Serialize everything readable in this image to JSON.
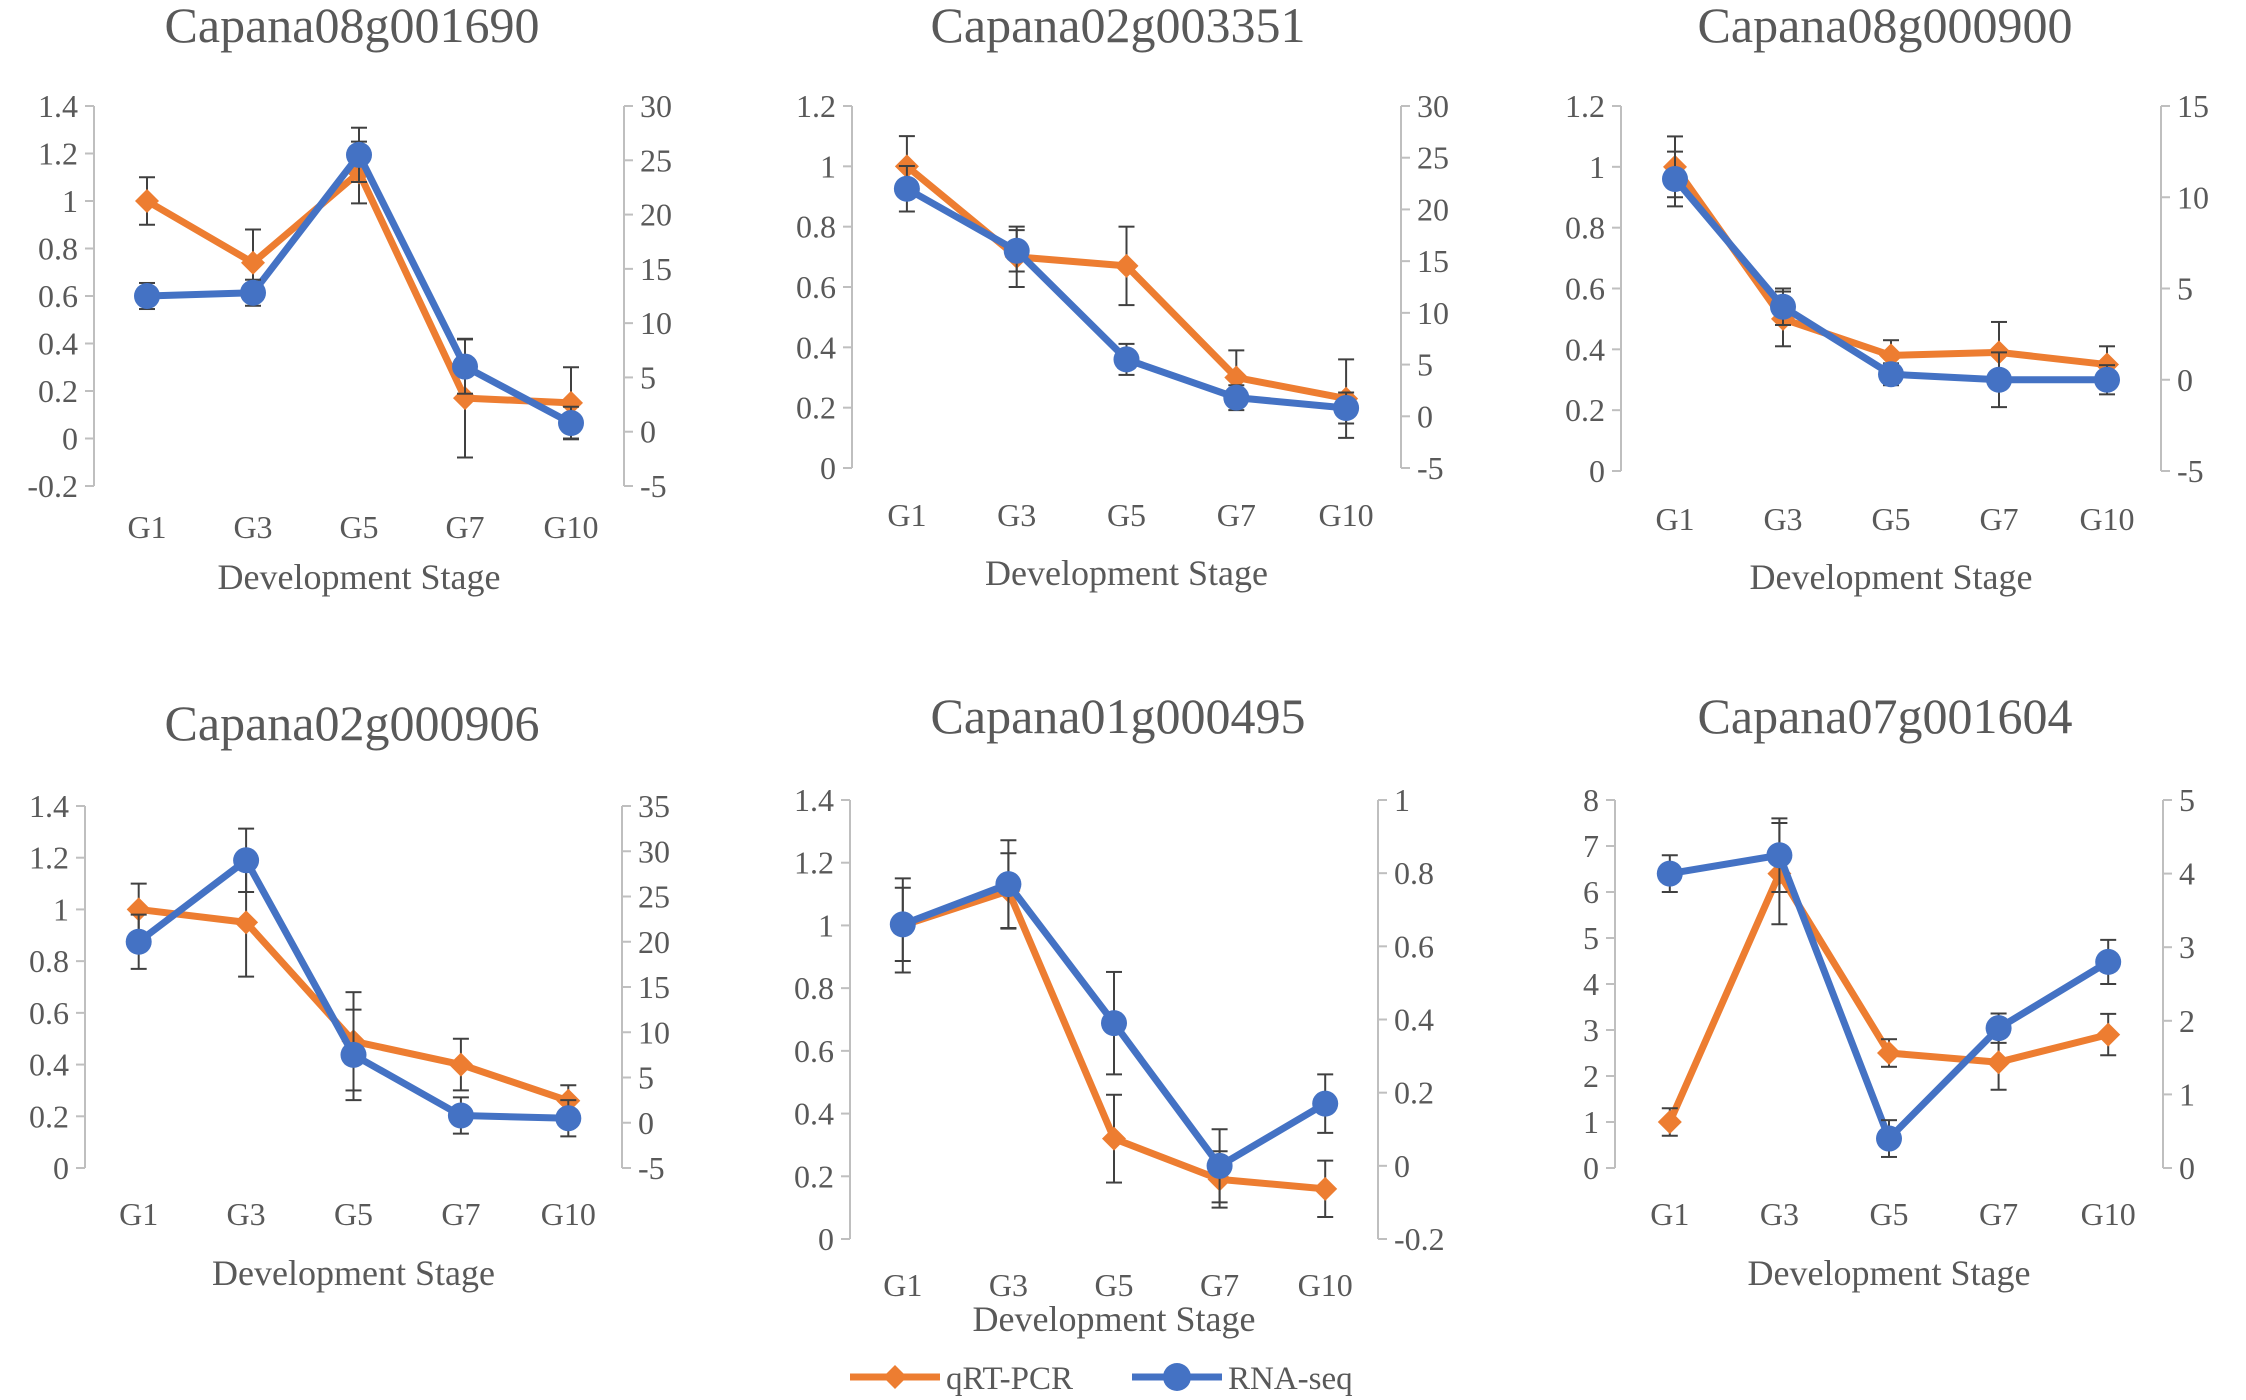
{
  "chart_data": [
    {
      "type": "line",
      "title": "Capana08g001690",
      "xlabel": "Development Stage",
      "categories": [
        "G1",
        "G3",
        "G5",
        "G7",
        "G10"
      ],
      "ylim": [
        -0.2,
        1.4
      ],
      "ystep": 0.2,
      "y2lim": [
        -5,
        30
      ],
      "y2step": 5,
      "series": [
        {
          "name": "qRT-PCR",
          "axis": "left",
          "values": [
            1.0,
            0.74,
            1.12,
            0.17,
            0.15
          ],
          "errors": [
            0.1,
            0.14,
            0.13,
            0.25,
            0.15
          ]
        },
        {
          "name": "RNA-seq",
          "axis": "right",
          "values": [
            12.5,
            12.8,
            25.5,
            6.0,
            0.8
          ],
          "errors": [
            1.2,
            1.2,
            2.5,
            2.5,
            1.5
          ]
        }
      ]
    },
    {
      "type": "line",
      "title": "Capana02g003351",
      "xlabel": "Development Stage",
      "categories": [
        "G1",
        "G3",
        "G5",
        "G7",
        "G10"
      ],
      "ylim": [
        0,
        1.2
      ],
      "ystep": 0.2,
      "y2lim": [
        -5,
        30
      ],
      "y2step": 5,
      "series": [
        {
          "name": "qRT-PCR",
          "axis": "left",
          "values": [
            1.0,
            0.7,
            0.67,
            0.3,
            0.23
          ],
          "errors": [
            0.1,
            0.1,
            0.13,
            0.09,
            0.13
          ]
        },
        {
          "name": "RNA-seq",
          "axis": "right",
          "values": [
            22.0,
            16.0,
            5.5,
            1.8,
            0.8
          ],
          "errors": [
            2.2,
            2.0,
            1.5,
            1.2,
            1.5
          ]
        }
      ]
    },
    {
      "type": "line",
      "title": "Capana08g000900",
      "xlabel": "Development Stage",
      "categories": [
        "G1",
        "G3",
        "G5",
        "G7",
        "G10"
      ],
      "ylim": [
        0,
        1.2
      ],
      "ystep": 0.2,
      "y2lim": [
        -5,
        15
      ],
      "y2step": 5,
      "series": [
        {
          "name": "qRT-PCR",
          "axis": "left",
          "values": [
            1.0,
            0.5,
            0.38,
            0.39,
            0.35
          ],
          "errors": [
            0.1,
            0.09,
            0.05,
            0.1,
            0.06
          ]
        },
        {
          "name": "RNA-seq",
          "axis": "right",
          "values": [
            11.0,
            4.0,
            0.3,
            0.0,
            0.0
          ],
          "errors": [
            1.5,
            1.0,
            0.6,
            1.5,
            0.8
          ]
        }
      ]
    },
    {
      "type": "line",
      "title": "Capana02g000906",
      "xlabel": "Development Stage",
      "categories": [
        "G1",
        "G3",
        "G5",
        "G7",
        "G10"
      ],
      "ylim": [
        0,
        1.4
      ],
      "ystep": 0.2,
      "y2lim": [
        -5,
        35
      ],
      "y2step": 5,
      "series": [
        {
          "name": "qRT-PCR",
          "axis": "left",
          "values": [
            1.0,
            0.95,
            0.49,
            0.4,
            0.26
          ],
          "errors": [
            0.1,
            0.21,
            0.19,
            0.1,
            0.06
          ]
        },
        {
          "name": "RNA-seq",
          "axis": "right",
          "values": [
            20.0,
            29.0,
            7.5,
            0.8,
            0.5
          ],
          "errors": [
            3.0,
            3.5,
            5.0,
            2.0,
            2.0
          ]
        }
      ]
    },
    {
      "type": "line",
      "title": "Capana01g000495",
      "xlabel": "Development Stage",
      "categories": [
        "G1",
        "G3",
        "G5",
        "G7",
        "G10"
      ],
      "ylim": [
        0,
        1.4
      ],
      "ystep": 0.2,
      "y2lim": [
        -0.2,
        1.0
      ],
      "y2step": 0.2,
      "series": [
        {
          "name": "qRT-PCR",
          "axis": "left",
          "values": [
            1.0,
            1.11,
            0.32,
            0.19,
            0.16
          ],
          "errors": [
            0.15,
            0.12,
            0.14,
            0.09,
            0.09
          ]
        },
        {
          "name": "RNA-seq",
          "axis": "right",
          "values": [
            0.66,
            0.77,
            0.39,
            0.0,
            0.17
          ],
          "errors": [
            0.1,
            0.12,
            0.14,
            0.1,
            0.08
          ]
        }
      ]
    },
    {
      "type": "line",
      "title": "Capana07g001604",
      "xlabel": "Development Stage",
      "categories": [
        "G1",
        "G3",
        "G5",
        "G7",
        "G10"
      ],
      "ylim": [
        0,
        8
      ],
      "ystep": 1,
      "y2lim": [
        0,
        5
      ],
      "y2step": 1,
      "series": [
        {
          "name": "qRT-PCR",
          "axis": "left",
          "values": [
            1.0,
            6.4,
            2.5,
            2.3,
            2.9
          ],
          "errors": [
            0.3,
            1.1,
            0.3,
            0.6,
            0.45
          ]
        },
        {
          "name": "RNA-seq",
          "axis": "right",
          "values": [
            4.0,
            4.25,
            0.4,
            1.9,
            2.8
          ],
          "errors": [
            0.25,
            0.5,
            0.25,
            0.2,
            0.3
          ]
        }
      ]
    }
  ],
  "legend": [
    {
      "label": "qRT-PCR",
      "color": "#ED7D31",
      "marker": "diamond"
    },
    {
      "label": "RNA-seq",
      "color": "#4472C4",
      "marker": "circle"
    }
  ],
  "colors": {
    "qRT-PCR": "#ED7D31",
    "RNA-seq": "#4472C4",
    "axis": "#BFBFBF",
    "errorbar": "#404040",
    "text": "#595959"
  }
}
